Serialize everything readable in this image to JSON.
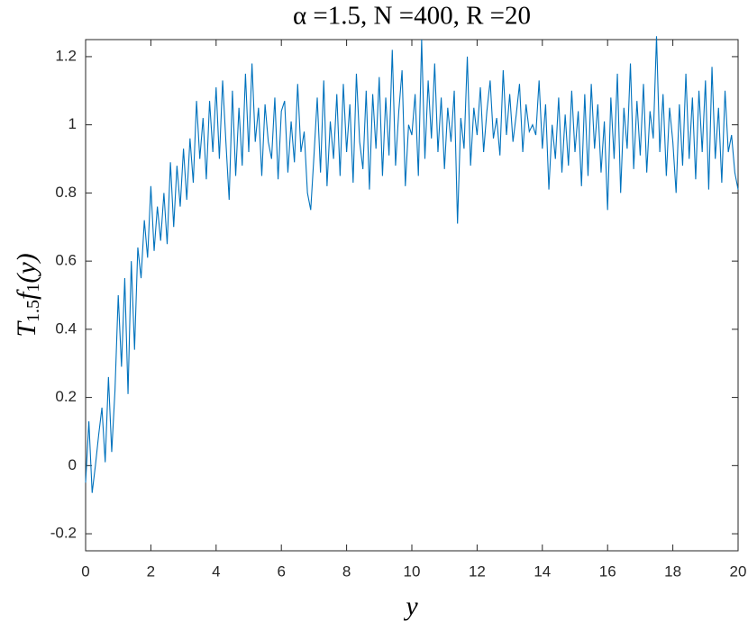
{
  "chart_data": {
    "type": "line",
    "title": "α =1.5, N =400, R =20",
    "xlabel": "y",
    "ylabel": [
      "T",
      "1.5",
      "f",
      "1",
      "(y)"
    ],
    "xlim": [
      0,
      20
    ],
    "ylim": [
      -0.25,
      1.25
    ],
    "xticks": [
      0,
      2,
      4,
      6,
      8,
      10,
      12,
      14,
      16,
      18,
      20
    ],
    "yticks": [
      -0.2,
      0,
      0.2,
      0.4,
      0.6,
      0.8,
      1,
      1.2
    ],
    "x": [
      0,
      0.1,
      0.2,
      0.3,
      0.4,
      0.5,
      0.6,
      0.7,
      0.8,
      0.9,
      1,
      1.1,
      1.2,
      1.3,
      1.4,
      1.5,
      1.6,
      1.7,
      1.8,
      1.9,
      2,
      2.1,
      2.2,
      2.3,
      2.4,
      2.5,
      2.6,
      2.7,
      2.8,
      2.9,
      3,
      3.1,
      3.2,
      3.3,
      3.4,
      3.5,
      3.6,
      3.7,
      3.8,
      3.9,
      4,
      4.1,
      4.2,
      4.3,
      4.4,
      4.5,
      4.6,
      4.7,
      4.8,
      4.9,
      5,
      5.1,
      5.2,
      5.3,
      5.4,
      5.5,
      5.6,
      5.7,
      5.8,
      5.9,
      6,
      6.1,
      6.2,
      6.3,
      6.4,
      6.5,
      6.6,
      6.7,
      6.8,
      6.9,
      7,
      7.1,
      7.2,
      7.3,
      7.4,
      7.5,
      7.6,
      7.7,
      7.8,
      7.9,
      8,
      8.1,
      8.2,
      8.3,
      8.4,
      8.5,
      8.6,
      8.7,
      8.8,
      8.9,
      9,
      9.1,
      9.2,
      9.3,
      9.4,
      9.5,
      9.6,
      9.7,
      9.8,
      9.9,
      10,
      10.1,
      10.2,
      10.3,
      10.4,
      10.5,
      10.6,
      10.7,
      10.8,
      10.9,
      11,
      11.1,
      11.2,
      11.3,
      11.4,
      11.5,
      11.6,
      11.7,
      11.8,
      11.9,
      12,
      12.1,
      12.2,
      12.3,
      12.4,
      12.5,
      12.6,
      12.7,
      12.8,
      12.9,
      13,
      13.1,
      13.2,
      13.3,
      13.4,
      13.5,
      13.6,
      13.7,
      13.8,
      13.9,
      14,
      14.1,
      14.2,
      14.3,
      14.4,
      14.5,
      14.6,
      14.7,
      14.8,
      14.9,
      15,
      15.1,
      15.2,
      15.3,
      15.4,
      15.5,
      15.6,
      15.7,
      15.8,
      15.9,
      16,
      16.1,
      16.2,
      16.3,
      16.4,
      16.5,
      16.6,
      16.7,
      16.8,
      16.9,
      17,
      17.1,
      17.2,
      17.3,
      17.4,
      17.5,
      17.6,
      17.7,
      17.8,
      17.9,
      18,
      18.1,
      18.2,
      18.3,
      18.4,
      18.5,
      18.6,
      18.7,
      18.8,
      18.9,
      19,
      19.1,
      19.2,
      19.3,
      19.4,
      19.5,
      19.6,
      19.7,
      19.8,
      19.9,
      20
    ],
    "series": [
      {
        "color": "#0072bd",
        "values": [
          -0.05,
          0.13,
          -0.08,
          0.0,
          0.09,
          0.17,
          0.01,
          0.26,
          0.04,
          0.22,
          0.5,
          0.29,
          0.55,
          0.21,
          0.6,
          0.34,
          0.64,
          0.55,
          0.72,
          0.61,
          0.82,
          0.63,
          0.76,
          0.66,
          0.8,
          0.65,
          0.89,
          0.7,
          0.88,
          0.76,
          0.93,
          0.78,
          0.96,
          0.83,
          1.07,
          0.9,
          1.02,
          0.84,
          1.07,
          0.92,
          1.11,
          0.9,
          1.13,
          0.95,
          0.78,
          1.1,
          0.85,
          1.05,
          0.88,
          1.15,
          0.92,
          1.18,
          0.95,
          1.05,
          0.85,
          1.06,
          0.95,
          0.9,
          1.08,
          0.84,
          1.04,
          1.07,
          0.86,
          1.01,
          0.89,
          1.12,
          0.92,
          0.98,
          0.8,
          0.75,
          0.91,
          1.08,
          0.86,
          1.13,
          0.82,
          1.01,
          0.9,
          1.09,
          0.85,
          1.12,
          0.92,
          1.06,
          0.83,
          1.15,
          0.95,
          0.87,
          1.1,
          0.81,
          1.09,
          0.93,
          1.14,
          0.85,
          1.08,
          0.91,
          1.22,
          0.88,
          1.04,
          1.16,
          0.82,
          1.0,
          0.97,
          1.09,
          0.85,
          1.25,
          0.9,
          1.13,
          0.96,
          1.18,
          0.92,
          1.08,
          0.87,
          1.05,
          0.95,
          1.1,
          0.71,
          1.02,
          0.93,
          1.2,
          0.88,
          1.05,
          0.97,
          1.11,
          0.92,
          1.04,
          1.13,
          0.96,
          1.02,
          0.91,
          1.16,
          0.97,
          1.09,
          0.95,
          1.03,
          1.12,
          0.92,
          1.06,
          0.98,
          1.0,
          0.97,
          1.13,
          0.93,
          1.06,
          0.81,
          1.0,
          0.9,
          1.08,
          0.86,
          1.03,
          0.88,
          1.1,
          0.92,
          1.04,
          0.82,
          1.09,
          0.85,
          1.12,
          0.93,
          1.06,
          0.86,
          1.01,
          0.75,
          1.08,
          0.9,
          1.15,
          0.8,
          1.05,
          0.93,
          1.18,
          0.87,
          1.07,
          0.91,
          1.12,
          0.86,
          1.04,
          0.96,
          1.26,
          0.92,
          1.09,
          0.85,
          1.05,
          0.95,
          0.8,
          1.06,
          0.88,
          1.15,
          0.9,
          1.08,
          0.84,
          1.1,
          0.92,
          1.13,
          0.81,
          1.17,
          0.9,
          1.05,
          0.83,
          1.1,
          0.92,
          0.97,
          0.86,
          0.81
        ]
      }
    ]
  }
}
